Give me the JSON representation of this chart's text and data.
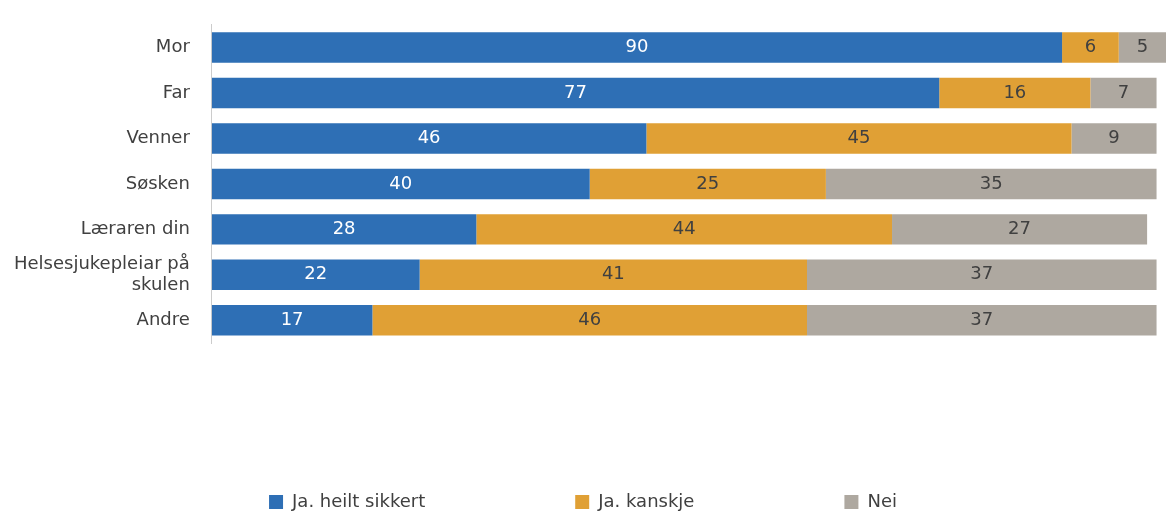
{
  "chart_data": {
    "type": "bar",
    "orientation": "horizontal",
    "stacked": true,
    "data_labels": true,
    "legend": "bottom",
    "categories": [
      "Mor",
      "Far",
      "Venner",
      "Søsken",
      "Læraren din",
      "Helsesjukepleiar på skulen",
      "Andre"
    ],
    "series": [
      {
        "name": "Ja. heilt sikkert",
        "color": "#2e6fb5",
        "values": [
          90,
          77,
          46,
          40,
          28,
          22,
          17
        ]
      },
      {
        "name": "Ja. kanskje",
        "color": "#e0a035",
        "values": [
          6,
          16,
          45,
          25,
          44,
          41,
          46
        ]
      },
      {
        "name": "Nei",
        "color": "#aea8a0",
        "values": [
          5,
          7,
          9,
          35,
          27,
          37,
          37
        ]
      }
    ]
  }
}
